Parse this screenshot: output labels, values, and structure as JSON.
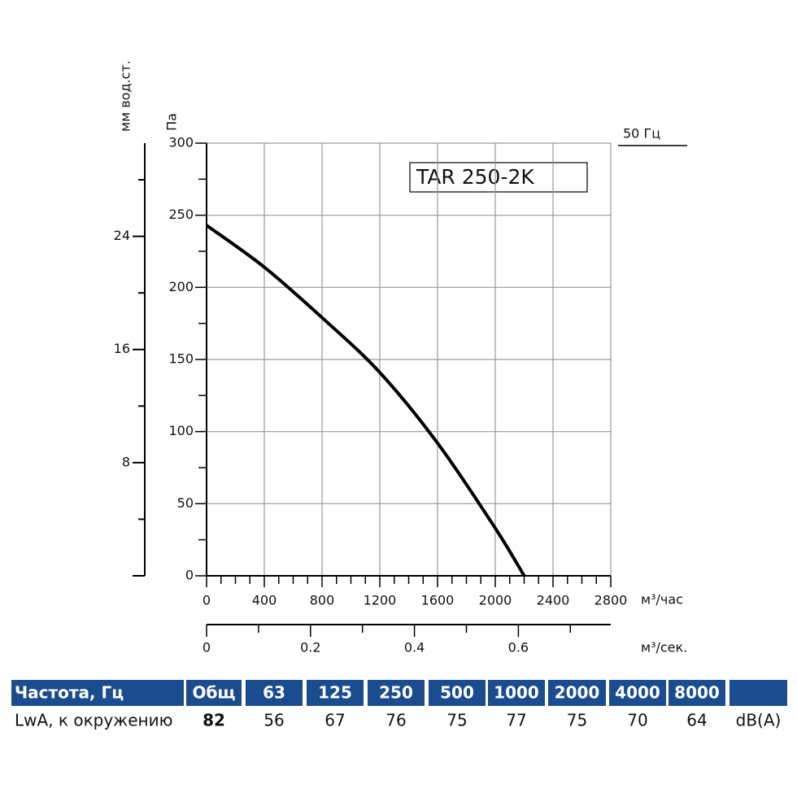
{
  "chart_data": {
    "type": "line",
    "title": "TAR 250-2K",
    "frequency_label": "50 Гц",
    "y_label": "Па",
    "y2_label": "мм вод.ст.",
    "x_unit": "м³/час",
    "x2_unit": "м³/сек.",
    "x": [
      0,
      400,
      800,
      1200,
      1600,
      2000,
      2200
    ],
    "series": [
      {
        "color": "#000000",
        "values": [
          243,
          214,
          179,
          141,
          92,
          33,
          0
        ]
      }
    ],
    "xlim": [
      0,
      2800
    ],
    "xticks": [
      0,
      400,
      800,
      1200,
      1600,
      2000,
      2400,
      2800
    ],
    "xminorticks": [
      100,
      200,
      300,
      500,
      600,
      700,
      900,
      1000,
      1100,
      1300,
      1400,
      1500,
      1700,
      1800,
      1900,
      2100,
      2200,
      2300,
      2500,
      2600,
      2700
    ],
    "ylim": [
      0,
      300
    ],
    "yticks": [
      0,
      50,
      100,
      150,
      200,
      250,
      300
    ],
    "yminorticks": [
      25,
      75,
      125,
      175,
      225,
      275
    ],
    "y2lim": [
      0,
      30.59
    ],
    "y2ticks": [
      8,
      16,
      24
    ],
    "y2minorticks": [
      0,
      4,
      12,
      20,
      28
    ],
    "x2lim": [
      0,
      0.7778
    ],
    "x2ticks": [
      0,
      0.2,
      0.4,
      0.6
    ],
    "x2minorticks": [
      0.1,
      0.3,
      0.5,
      0.7
    ],
    "grid": true
  },
  "table": {
    "header": [
      "Частота, Гц",
      "Общ",
      63,
      125,
      250,
      500,
      1000,
      2000,
      4000,
      8000
    ],
    "row": [
      "LwA, к окружению",
      82,
      56,
      67,
      76,
      75,
      77,
      75,
      70,
      64,
      "dB(A)"
    ]
  }
}
